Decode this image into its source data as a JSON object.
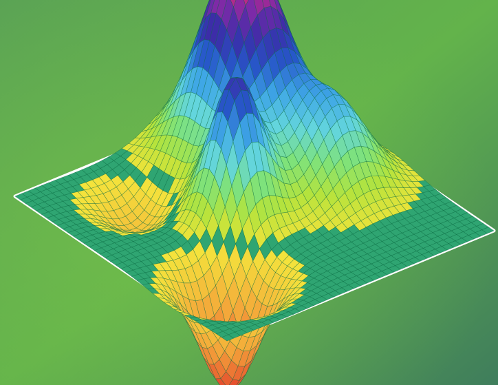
{
  "image": {
    "subject": "3d-surface-plot-icon",
    "background_gradient": [
      "#4f8a5e",
      "#6bb94a",
      "#4f8a5e"
    ],
    "plane_color": "#2fa572",
    "mesh_line_color": "#0d6b44",
    "outline_color": "#ffffff",
    "colormap": [
      "#f3e33a",
      "#b5e33c",
      "#7fe27a",
      "#63d5dd",
      "#3ea5e6",
      "#2757c9",
      "#3a2da8",
      "#7b2aa8",
      "#d0287f",
      "#f0306c"
    ],
    "colormap_low": [
      "#f4e93c",
      "#f4a23a",
      "#e23a2a"
    ]
  }
}
